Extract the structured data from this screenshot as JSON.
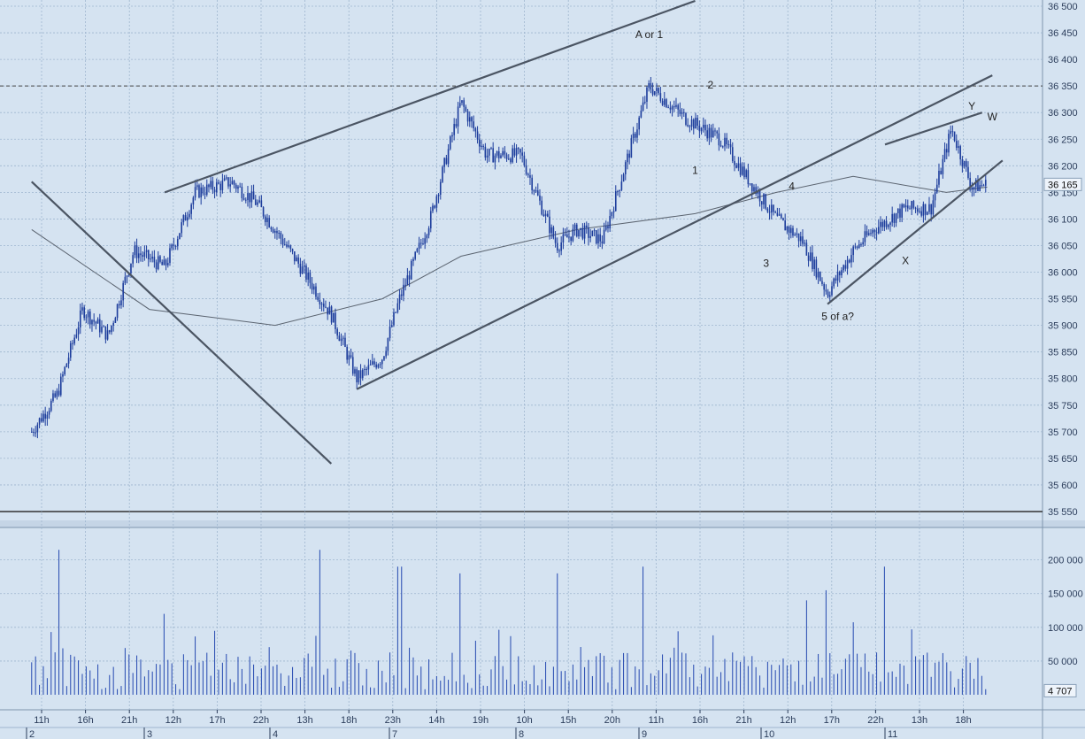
{
  "colors": {
    "background": "#d5e3f1",
    "grid": "#9fb6cf",
    "candle": "#1d3d9c",
    "volume": "#2448b0",
    "trendline": "#4b5563",
    "moving_average": "#5b6470",
    "axis_text": "#2c3e5c",
    "price_box": "#eef4fb",
    "annotation": "#222222"
  },
  "chart_data": [
    {
      "type": "line",
      "description_kind": "price candlestick, intraday",
      "y_ticks": [
        "36 500",
        "36 450",
        "36 400",
        "36 350",
        "36 300",
        "36 250",
        "36 200",
        "36 150",
        "36 100",
        "36 050",
        "36 000",
        "35 950",
        "35 900",
        "35 850",
        "35 800",
        "35 750",
        "35 700",
        "35 650",
        "35 600",
        "35 550"
      ],
      "ylim": [
        35530,
        36500
      ],
      "current_price": "36 165",
      "reference_level": 35550,
      "dashed_level": 36350,
      "annotations": [
        {
          "text": "A or 1",
          "x": "9 02h",
          "y": 36440
        },
        {
          "text": "2",
          "x": "9 14h",
          "y": 36345
        },
        {
          "text": "1",
          "x": "9 11h",
          "y": 36185
        },
        {
          "text": "4",
          "x": "10 06h",
          "y": 36155
        },
        {
          "text": "3",
          "x": "10 01h",
          "y": 36010
        },
        {
          "text": "5 of a?",
          "x": "10 15h",
          "y": 35910
        },
        {
          "text": "W",
          "x": "11 21h",
          "y": 36285
        },
        {
          "text": "Y",
          "x": "11 17h",
          "y": 36305
        },
        {
          "text": "X",
          "x": "11 04h",
          "y": 36015
        }
      ],
      "price_path_approx": [
        {
          "t": "2 01h",
          "v": 35700
        },
        {
          "t": "2 06h",
          "v": 35770
        },
        {
          "t": "2 11h",
          "v": 35930
        },
        {
          "t": "2 16h",
          "v": 35880
        },
        {
          "t": "2 21h",
          "v": 36040
        },
        {
          "t": "3 04h",
          "v": 36010
        },
        {
          "t": "3 10h",
          "v": 36150
        },
        {
          "t": "3 17h",
          "v": 36170
        },
        {
          "t": "3 22h",
          "v": 36130
        },
        {
          "t": "4 06h",
          "v": 36010
        },
        {
          "t": "4 12h",
          "v": 35920
        },
        {
          "t": "4 17h",
          "v": 35800
        },
        {
          "t": "4 22h",
          "v": 35840
        },
        {
          "t": "7 02h",
          "v": 35950
        },
        {
          "t": "7 08h",
          "v": 36100
        },
        {
          "t": "7 14h",
          "v": 36320
        },
        {
          "t": "7 19h",
          "v": 36220
        },
        {
          "t": "8 01h",
          "v": 36220
        },
        {
          "t": "8 08h",
          "v": 36050
        },
        {
          "t": "8 12h",
          "v": 36080
        },
        {
          "t": "8 17h",
          "v": 36060
        },
        {
          "t": "8 22h",
          "v": 36220
        },
        {
          "t": "9 02h",
          "v": 36350
        },
        {
          "t": "9 09h",
          "v": 36290
        },
        {
          "t": "9 16h",
          "v": 36250
        },
        {
          "t": "9 21h",
          "v": 36180
        },
        {
          "t": "10 03h",
          "v": 36100
        },
        {
          "t": "10 08h",
          "v": 36060
        },
        {
          "t": "10 13h",
          "v": 35960
        },
        {
          "t": "10 18h",
          "v": 36040
        },
        {
          "t": "10 22h",
          "v": 36080
        },
        {
          "t": "11 04h",
          "v": 36120
        },
        {
          "t": "11 09h",
          "v": 36120
        },
        {
          "t": "11 13h",
          "v": 36270
        },
        {
          "t": "11 17h",
          "v": 36160
        },
        {
          "t": "11 20h",
          "v": 36165
        }
      ],
      "trendlines": [
        {
          "from": {
            "t": "2 01h",
            "v": 36170
          },
          "to": {
            "t": "4 12h",
            "v": 35640
          }
        },
        {
          "from": {
            "t": "3 04h",
            "v": 36150
          },
          "to": {
            "t": "9 11h",
            "v": 36510
          }
        },
        {
          "from": {
            "t": "4 17h",
            "v": 35780
          },
          "to": {
            "t": "11 21h",
            "v": 36370
          }
        },
        {
          "from": {
            "t": "10 13h",
            "v": 35940
          },
          "to": {
            "t": "11 23h",
            "v": 36210
          }
        },
        {
          "from": {
            "t": "11 00h",
            "v": 36240
          },
          "to": {
            "t": "11 19h",
            "v": 36300
          }
        }
      ],
      "moving_average_approx": [
        {
          "t": "2 01h",
          "v": 36080
        },
        {
          "t": "3 01h",
          "v": 35930
        },
        {
          "t": "4 01h",
          "v": 35900
        },
        {
          "t": "4 22h",
          "v": 35950
        },
        {
          "t": "7 14h",
          "v": 36030
        },
        {
          "t": "8 12h",
          "v": 36080
        },
        {
          "t": "9 11h",
          "v": 36110
        },
        {
          "t": "10 03h",
          "v": 36150
        },
        {
          "t": "10 18h",
          "v": 36180
        },
        {
          "t": "11 12h",
          "v": 36150
        },
        {
          "t": "11 20h",
          "v": 36160
        }
      ]
    },
    {
      "type": "bar",
      "description_kind": "volume",
      "y_ticks": [
        "200 000",
        "150 000",
        "100 000",
        "50 000"
      ],
      "ylim": [
        0,
        235000
      ],
      "current_value": "4 707",
      "spikes_approx": [
        {
          "t": "2 06h",
          "v": 215000
        },
        {
          "t": "3 04h",
          "v": 120000
        },
        {
          "t": "4 10h",
          "v": 215000
        },
        {
          "t": "7 02h",
          "v": 190000
        },
        {
          "t": "7 14h",
          "v": 180000
        },
        {
          "t": "8 08h",
          "v": 180000
        },
        {
          "t": "9 01h",
          "v": 190000
        },
        {
          "t": "10 09h",
          "v": 140000
        },
        {
          "t": "10 13h",
          "v": 155000
        },
        {
          "t": "11 00h",
          "v": 190000
        }
      ]
    }
  ],
  "x_axis": {
    "hour_ticks": [
      "11h",
      "16h",
      "21h",
      "12h",
      "17h",
      "22h",
      "13h",
      "18h",
      "23h",
      "14h",
      "19h",
      "10h",
      "15h",
      "20h",
      "11h",
      "16h",
      "21h",
      "12h",
      "17h",
      "22h",
      "13h",
      "18h"
    ],
    "day_labels": [
      "2",
      "3",
      "4",
      "7",
      "8",
      "9",
      "10",
      "11"
    ]
  }
}
